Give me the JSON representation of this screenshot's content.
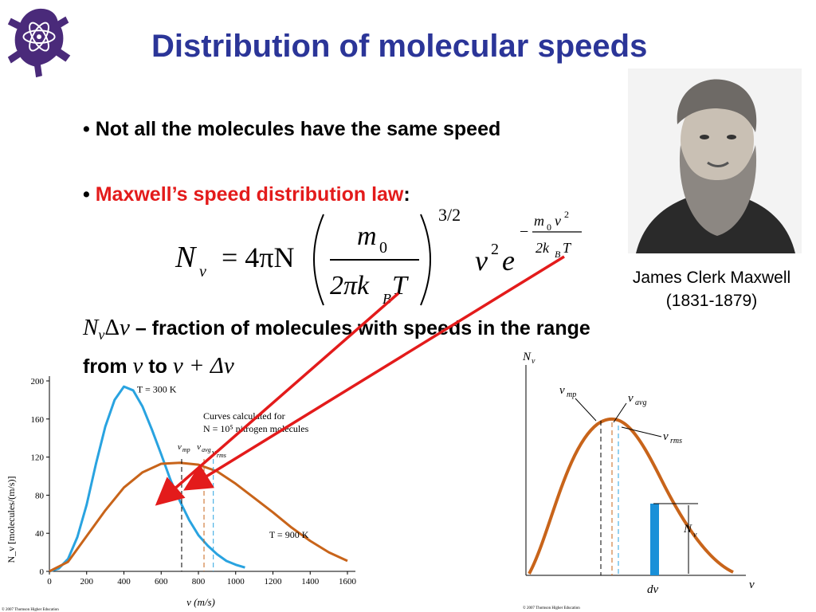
{
  "title": "Distribution of molecular speeds",
  "bullets": {
    "marker": "•",
    "b1": "Not all the molecules have the same speed",
    "b2_red": "Maxwell’s speed distribution law",
    "b2_colon": ":"
  },
  "portrait_caption": {
    "name": "James Clerk Maxwell",
    "years": "(1831-1879)"
  },
  "fraction_text": {
    "sym_n": "N",
    "sym_sub": "v",
    "sym_delta": "Δ",
    "sym_v": "v",
    "line1_rest": " – fraction of molecules with speeds in the range",
    "line2_from": "from ",
    "line2_v1": "v",
    "line2_to": " to ",
    "line2_expr": "v + Δv"
  },
  "formula": {
    "lhs": "N",
    "lhs_sub": "v",
    "eq": "= 4πN",
    "num": "m",
    "num_sub": "0",
    "den": "2πk",
    "den_sub": "B",
    "den_T": "T",
    "power": "3/2",
    "v": "v",
    "v_sup": "2",
    "e": "e",
    "exp_minus": "−",
    "exp_num": "m",
    "exp_num_sub": "0",
    "exp_num_v": "v",
    "exp_num_sup": "2",
    "exp_den": "2k",
    "exp_den_sub": "B",
    "exp_den_T": "T"
  },
  "chart_data": [
    {
      "type": "line",
      "xlabel": "v (m/s)",
      "ylabel": "N_v [molecules/(m/s)]",
      "xlim": [
        0,
        1600
      ],
      "ylim": [
        0,
        200
      ],
      "x_ticks": [
        "0",
        "200",
        "400",
        "600",
        "800",
        "1000",
        "1200",
        "1400",
        "1600"
      ],
      "y_ticks": [
        "0",
        "40",
        "80",
        "120",
        "160",
        "200"
      ],
      "annotation": "Curves calculated for",
      "annotation2": "N = 10⁵ nitrogen molecules",
      "series": [
        {
          "name": "T = 300 K",
          "color": "#29a3e0",
          "x": [
            0,
            50,
            100,
            150,
            200,
            250,
            300,
            350,
            400,
            450,
            500,
            550,
            600,
            650,
            700,
            750,
            800,
            850,
            900,
            950,
            1000,
            1050
          ],
          "y": [
            0,
            3,
            13,
            36,
            70,
            113,
            152,
            180,
            194,
            190,
            173,
            149,
            123,
            96,
            74,
            54,
            38,
            27,
            18,
            11,
            7,
            4
          ]
        },
        {
          "name": "T = 900 K",
          "color": "#c8641a",
          "x": [
            0,
            100,
            200,
            300,
            400,
            500,
            600,
            700,
            800,
            900,
            1000,
            1100,
            1200,
            1300,
            1400,
            1500,
            1600
          ],
          "y": [
            0,
            10,
            37,
            64,
            88,
            104,
            113,
            114,
            112,
            105,
            92,
            77,
            62,
            46,
            32,
            20,
            11
          ]
        }
      ],
      "markers": {
        "v_mp": 710,
        "v_avg": 830,
        "v_rms": 880,
        "labels": {
          "mp": "v",
          "mp_sub": "mp",
          "avg": "v",
          "avg_sub": "avg",
          "rms": "v",
          "rms_sub": "rms"
        }
      },
      "credit": "© 2007 Thomson Higher Education"
    },
    {
      "type": "area",
      "ylabel": "N",
      "ylabel_sub": "v",
      "xlabel": "v",
      "bar_label": "dv",
      "bar_height_label": "N",
      "bar_height_label_sub": "v",
      "markers": {
        "mp": "v",
        "mp_sub": "mp",
        "avg": "v",
        "avg_sub": "avg",
        "rms": "v",
        "rms_sub": "rms"
      },
      "credit": "© 2007 Thomson Higher Education"
    }
  ],
  "colors": {
    "title": "#2b3598",
    "accent_red": "#e31b1b",
    "blue_curve": "#29a3e0",
    "brown_curve": "#c8641a",
    "logo": "#4a2a7a"
  },
  "icons": {
    "logo": "frog-atom-logo-icon",
    "portrait": "bearded-man-portrait-icon"
  }
}
